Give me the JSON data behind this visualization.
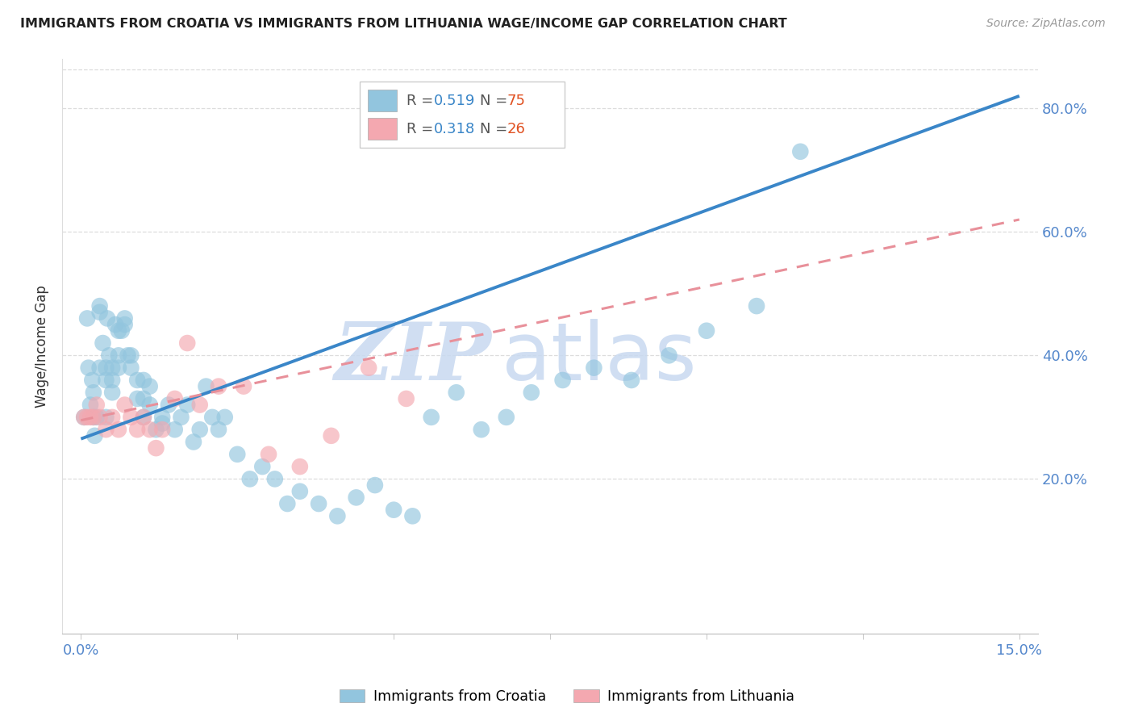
{
  "title": "IMMIGRANTS FROM CROATIA VS IMMIGRANTS FROM LITHUANIA WAGE/INCOME GAP CORRELATION CHART",
  "source": "Source: ZipAtlas.com",
  "ylabel": "Wage/Income Gap",
  "xlim": [
    0.0,
    0.15
  ],
  "ylim": [
    -0.05,
    0.88
  ],
  "yticks_right": [
    0.2,
    0.4,
    0.6,
    0.8
  ],
  "ytick_labels_right": [
    "20.0%",
    "40.0%",
    "60.0%",
    "80.0%"
  ],
  "xticks": [
    0.0,
    0.025,
    0.05,
    0.075,
    0.1,
    0.125,
    0.15
  ],
  "xtick_labels": [
    "0.0%",
    "",
    "",
    "",
    "",
    "",
    "15.0%"
  ],
  "croatia_color": "#92c5de",
  "lithuania_color": "#f4a8b0",
  "croatia_line_color": "#3a86c8",
  "lithuania_line_color": "#e8909a",
  "croatia_R": "0.519",
  "croatia_N": "75",
  "lithuania_R": "0.318",
  "lithuania_N": "26",
  "R_color": "#3a86c8",
  "N_color": "#e05020",
  "watermark_ZIP": "ZIP",
  "watermark_atlas": "atlas",
  "watermark_color_ZIP": "#c8d9f0",
  "watermark_color_atlas": "#c8d9f0",
  "grid_color": "#dddddd",
  "tick_label_color": "#5588cc",
  "croatia_x": [
    0.0005,
    0.001,
    0.0012,
    0.0015,
    0.0018,
    0.002,
    0.002,
    0.0022,
    0.0025,
    0.003,
    0.003,
    0.003,
    0.0035,
    0.004,
    0.004,
    0.004,
    0.0042,
    0.0045,
    0.005,
    0.005,
    0.005,
    0.0055,
    0.006,
    0.006,
    0.006,
    0.0065,
    0.007,
    0.007,
    0.0075,
    0.008,
    0.008,
    0.009,
    0.009,
    0.01,
    0.01,
    0.01,
    0.011,
    0.011,
    0.012,
    0.013,
    0.013,
    0.014,
    0.015,
    0.016,
    0.017,
    0.018,
    0.019,
    0.02,
    0.021,
    0.022,
    0.023,
    0.025,
    0.027,
    0.029,
    0.031,
    0.033,
    0.035,
    0.038,
    0.041,
    0.044,
    0.047,
    0.05,
    0.053,
    0.056,
    0.06,
    0.064,
    0.068,
    0.072,
    0.077,
    0.082,
    0.088,
    0.094,
    0.1,
    0.108,
    0.115
  ],
  "croatia_y": [
    0.3,
    0.46,
    0.38,
    0.32,
    0.36,
    0.3,
    0.34,
    0.27,
    0.3,
    0.38,
    0.48,
    0.47,
    0.42,
    0.36,
    0.3,
    0.38,
    0.46,
    0.4,
    0.34,
    0.36,
    0.38,
    0.45,
    0.44,
    0.4,
    0.38,
    0.44,
    0.45,
    0.46,
    0.4,
    0.38,
    0.4,
    0.33,
    0.36,
    0.33,
    0.36,
    0.3,
    0.35,
    0.32,
    0.28,
    0.3,
    0.29,
    0.32,
    0.28,
    0.3,
    0.32,
    0.26,
    0.28,
    0.35,
    0.3,
    0.28,
    0.3,
    0.24,
    0.2,
    0.22,
    0.2,
    0.16,
    0.18,
    0.16,
    0.14,
    0.17,
    0.19,
    0.15,
    0.14,
    0.3,
    0.34,
    0.28,
    0.3,
    0.34,
    0.36,
    0.38,
    0.36,
    0.4,
    0.44,
    0.48,
    0.73
  ],
  "lithuania_x": [
    0.0005,
    0.001,
    0.0015,
    0.002,
    0.0025,
    0.003,
    0.004,
    0.005,
    0.006,
    0.007,
    0.008,
    0.009,
    0.01,
    0.011,
    0.012,
    0.013,
    0.015,
    0.017,
    0.019,
    0.022,
    0.026,
    0.03,
    0.035,
    0.04,
    0.046,
    0.052
  ],
  "lithuania_y": [
    0.3,
    0.3,
    0.3,
    0.3,
    0.32,
    0.3,
    0.28,
    0.3,
    0.28,
    0.32,
    0.3,
    0.28,
    0.3,
    0.28,
    0.25,
    0.28,
    0.33,
    0.42,
    0.32,
    0.35,
    0.35,
    0.24,
    0.22,
    0.27,
    0.38,
    0.33
  ],
  "cro_trend_x0": 0.0,
  "cro_trend_y0": 0.265,
  "cro_trend_x1": 0.15,
  "cro_trend_y1": 0.82,
  "lit_trend_x0": 0.0,
  "lit_trend_y0": 0.295,
  "lit_trend_x1": 0.15,
  "lit_trend_y1": 0.62
}
